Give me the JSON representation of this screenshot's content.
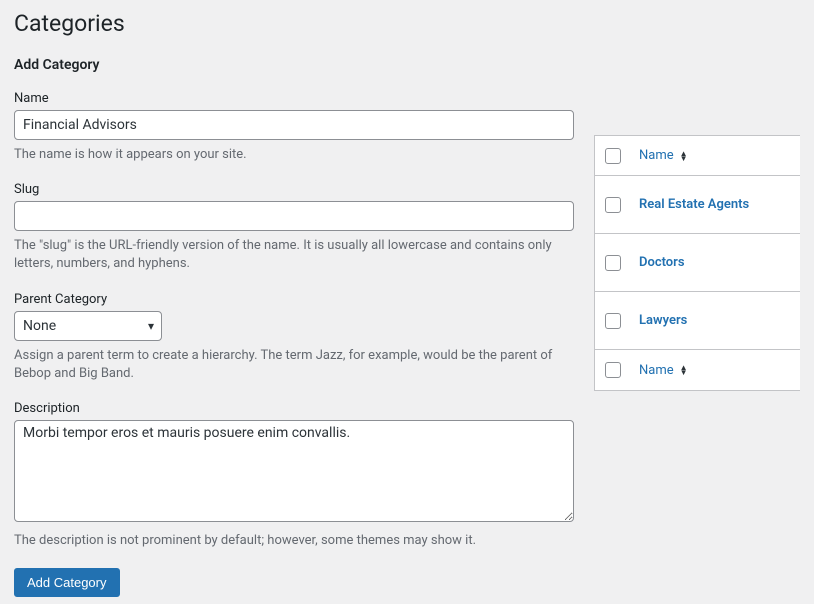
{
  "page": {
    "title": "Categories",
    "section_title": "Add Category"
  },
  "form": {
    "name": {
      "label": "Name",
      "value": "Financial Advisors",
      "help": "The name is how it appears on your site."
    },
    "slug": {
      "label": "Slug",
      "value": "",
      "help": "The \"slug\" is the URL-friendly version of the name. It is usually all lowercase and contains only letters, numbers, and hyphens."
    },
    "parent": {
      "label": "Parent Category",
      "selected": "None",
      "help": "Assign a parent term to create a hierarchy. The term Jazz, for example, would be the parent of Bebop and Big Band."
    },
    "description": {
      "label": "Description",
      "value": "Morbi tempor eros et mauris posuere enim convallis.",
      "help": "The description is not prominent by default; however, some themes may show it."
    },
    "submit_label": "Add Category"
  },
  "table": {
    "header": "Name",
    "rows": [
      {
        "name": "Real Estate Agents"
      },
      {
        "name": "Doctors"
      },
      {
        "name": "Lawyers"
      }
    ],
    "footer": "Name"
  },
  "colors": {
    "background": "#f0f0f1",
    "text": "#3c434a",
    "link": "#2271b1",
    "border": "#8c8f94",
    "help": "#646970",
    "button_bg": "#2271b1",
    "button_text": "#ffffff"
  }
}
